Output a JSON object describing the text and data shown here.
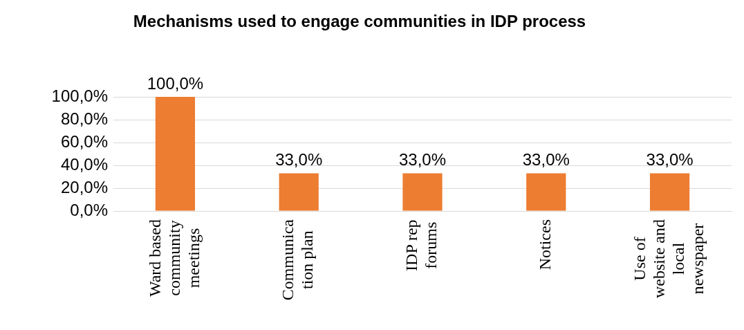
{
  "chart_data": {
    "type": "bar",
    "title": "Mechanisms used to engage communities in IDP process",
    "categories": [
      "Ward based\ncommunity\nmeetings",
      "Communica\ntion plan",
      "IDP rep\nforums",
      "Notices",
      "Use of\nwebsite and\nlocal\nnewspaper"
    ],
    "values": [
      100,
      33,
      33,
      33,
      33
    ],
    "color": "#ed7d31",
    "value_labels": [
      "100,0%",
      "33,0%",
      "33,0%",
      "33,0%",
      "33,0%"
    ],
    "ylim": [
      0,
      100
    ],
    "yticks": [
      {
        "value": 0,
        "label": "0,0%"
      },
      {
        "value": 20,
        "label": "20,0%"
      },
      {
        "value": 40,
        "label": "40,0%"
      },
      {
        "value": 60,
        "label": "60,0%"
      },
      {
        "value": 80,
        "label": "80,0%"
      },
      {
        "value": 100,
        "label": "100,0%"
      }
    ],
    "grid": "y",
    "legend": false
  }
}
